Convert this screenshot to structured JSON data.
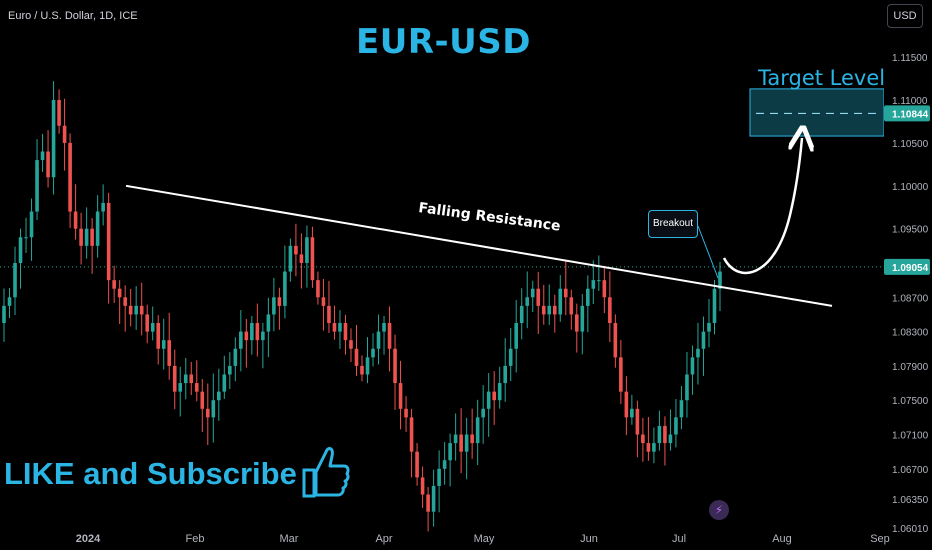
{
  "header": {
    "symbol_info": "Euro / U.S. Dollar, 1D, ICE",
    "currency": "USD"
  },
  "annotations": {
    "title": "EUR-USD",
    "target_label": "Target Level",
    "resistance_label": "Falling Resistance",
    "breakout_label": "Breakout",
    "like_text": "LIKE and Subscribe",
    "thumb_icon": "thumbs-up-icon",
    "lightning_icon": "lightning-icon"
  },
  "colors": {
    "up": "#26a69a",
    "down": "#ef5350",
    "accent": "#2bb5e5",
    "background": "#000000"
  },
  "chart_data": {
    "type": "candlestick",
    "instrument": "EUR/USD",
    "interval": "1D",
    "x_tick_labels": [
      "2024",
      "Feb",
      "Mar",
      "Apr",
      "May",
      "Jun",
      "Jul",
      "Aug",
      "Sep"
    ],
    "y_tick_labels": [
      "1.11500",
      "1.11000",
      "1.10500",
      "1.10000",
      "1.09500",
      "1.08700",
      "1.08300",
      "1.07900",
      "1.07500",
      "1.07100",
      "1.06700",
      "1.06350",
      "1.06010"
    ],
    "ylim": [
      1.0601,
      1.117
    ],
    "current_price": "1.09054",
    "target_price": "1.10844",
    "resistance_line": {
      "from": [
        "2024-01-12",
        1.1
      ],
      "to": [
        "2024-08-10",
        1.086
      ]
    },
    "target_zone": [
      1.1058,
      1.1113
    ],
    "close_path": [
      1.086,
      1.087,
      1.091,
      1.094,
      1.094,
      1.097,
      1.103,
      1.104,
      1.101,
      1.11,
      1.107,
      1.105,
      1.097,
      1.095,
      1.093,
      1.095,
      1.093,
      1.097,
      1.098,
      1.089,
      1.088,
      1.087,
      1.086,
      1.085,
      1.086,
      1.085,
      1.083,
      1.084,
      1.081,
      1.082,
      1.079,
      1.076,
      1.077,
      1.078,
      1.077,
      1.076,
      1.074,
      1.073,
      1.075,
      1.076,
      1.078,
      1.079,
      1.081,
      1.083,
      1.082,
      1.084,
      1.082,
      1.083,
      1.085,
      1.087,
      1.086,
      1.09,
      1.093,
      1.092,
      1.091,
      1.094,
      1.089,
      1.087,
      1.086,
      1.084,
      1.083,
      1.084,
      1.082,
      1.081,
      1.079,
      1.078,
      1.08,
      1.081,
      1.083,
      1.084,
      1.081,
      1.077,
      1.074,
      1.073,
      1.069,
      1.066,
      1.064,
      1.062,
      1.065,
      1.067,
      1.068,
      1.07,
      1.071,
      1.069,
      1.071,
      1.07,
      1.073,
      1.074,
      1.076,
      1.075,
      1.077,
      1.079,
      1.081,
      1.084,
      1.086,
      1.087,
      1.088,
      1.086,
      1.085,
      1.086,
      1.085,
      1.088,
      1.087,
      1.085,
      1.083,
      1.086,
      1.088,
      1.089,
      1.089,
      1.087,
      1.084,
      1.08,
      1.076,
      1.073,
      1.074,
      1.071,
      1.07,
      1.069,
      1.07,
      1.072,
      1.07,
      1.071,
      1.073,
      1.075,
      1.078,
      1.08,
      1.081,
      1.083,
      1.084,
      1.088,
      1.09
    ]
  }
}
